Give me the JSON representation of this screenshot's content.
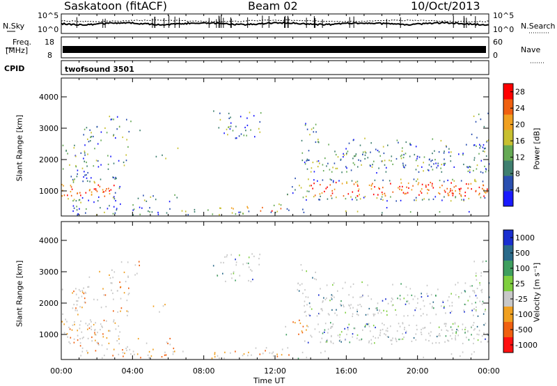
{
  "header": {
    "station": "Saskatoon (fitACF)",
    "beam": "Beam 02",
    "date": "10/Oct/2013"
  },
  "top_panels": {
    "nsky_label": "N.Sky",
    "nsearch_label": "N.Search",
    "noise_ticks": [
      "10^5",
      "10^0"
    ],
    "freq_label": "Freq.",
    "freq_unit": "[MHz]",
    "freq_ticks": [
      "18",
      "8"
    ],
    "nave_label": "Nave",
    "nave_ticks": [
      "60",
      "0"
    ],
    "cpid_label": "CPID",
    "cpid_value": "twofsound 3501"
  },
  "chart_data": [
    {
      "type": "heatmap",
      "quantity": "power",
      "ylabel": "Slant Range [km]",
      "yticks": [
        1000,
        2000,
        3000,
        4000
      ],
      "ylim": [
        200,
        4600
      ],
      "colorbar_label": "Power [dB]",
      "colorbar_ticks": [
        4,
        8,
        12,
        16,
        20,
        24,
        28
      ],
      "colorbar_range": [
        0,
        30
      ]
    },
    {
      "type": "heatmap",
      "quantity": "velocity",
      "ylabel": "Slant Range [km]",
      "yticks": [
        1000,
        2000,
        3000,
        4000
      ],
      "ylim": [
        200,
        4600
      ],
      "colorbar_label": "Velocity [m s⁻¹]",
      "colorbar_ticks": [
        "1000",
        "500",
        "100",
        "25",
        "-25",
        "-100",
        "-500",
        "-1000"
      ]
    }
  ],
  "xaxis": {
    "label": "Time UT",
    "ticks": [
      "00:00",
      "04:00",
      "08:00",
      "12:00",
      "16:00",
      "20:00",
      "00:00"
    ]
  },
  "colors": {
    "power_scale": [
      "#1a1aff",
      "#2a4fb0",
      "#3f7f6f",
      "#66aa55",
      "#c8c030",
      "#f0a020",
      "#f06010",
      "#ff0000"
    ],
    "velocity_scale": [
      "#1a2fd0",
      "#2a6a8a",
      "#3f9f5f",
      "#7fcf3f",
      "#c8c8c8",
      "#f0a020",
      "#f06010",
      "#ff1010"
    ]
  }
}
